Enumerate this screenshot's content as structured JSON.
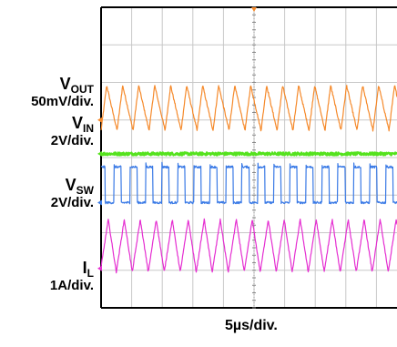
{
  "chart_data": {
    "type": "line",
    "x_scale_label": "5µs/div.",
    "grid": true,
    "grid_divisions": {
      "x": 10,
      "y": 8
    },
    "x_range_divisions": [
      0,
      10
    ],
    "x_unit": "µs",
    "series": [
      {
        "name_main": "V",
        "name_sub": "OUT",
        "scale_label": "50mV/div.",
        "color": "#f5892a",
        "shape": "sawtooth",
        "cycles_on_screen": 18.5,
        "offset_div": 5,
        "min_div": 4.72,
        "max_div": 5.92
      },
      {
        "name_main": "V",
        "name_sub": "IN",
        "scale_label": "2V/div.",
        "color": "#55e21e",
        "shape": "flat",
        "offset_div": 4.1,
        "min_div": 4.06,
        "max_div": 4.14
      },
      {
        "name_main": "V",
        "name_sub": "SW",
        "scale_label": "2V/div.",
        "color": "#3a7ae6",
        "shape": "square",
        "cycles_on_screen": 18.5,
        "offset_div": 2.8,
        "low_div": 2.8,
        "high_div": 3.75
      },
      {
        "name_main": "I",
        "name_sub": "L",
        "scale_label": "1A/div.",
        "color": "#e52ed1",
        "shape": "triangle",
        "cycles_on_screen": 18.5,
        "offset_div": 1.05,
        "min_div": 0.95,
        "max_div": 2.35
      }
    ]
  }
}
